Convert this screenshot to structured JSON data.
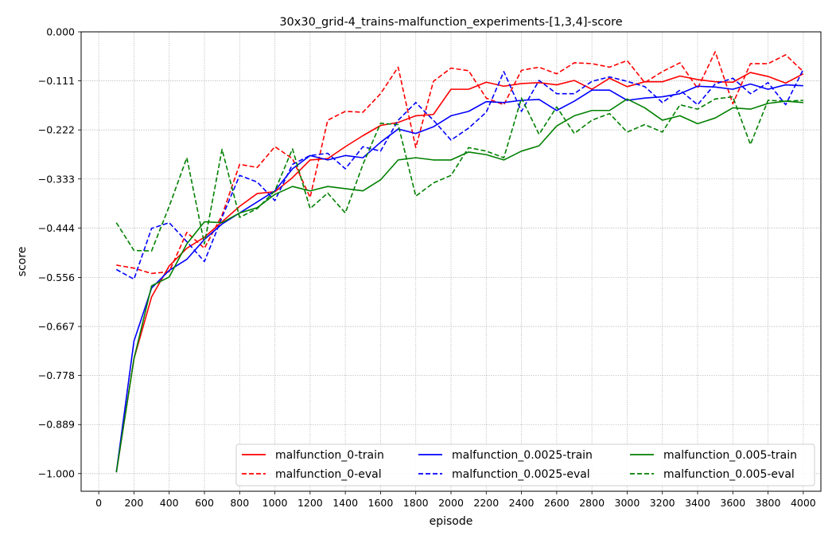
{
  "chart_data": {
    "type": "line",
    "title": "30x30_grid-4_trains-malfunction_experiments-[1,3,4]-score",
    "xlabel": "episode",
    "ylabel": "score",
    "xlim": [
      -100,
      4100
    ],
    "ylim": [
      -1.04,
      0.0
    ],
    "grid": true,
    "legend_position": "lower-right",
    "legend_columns": 3,
    "x_ticks": [
      0,
      200,
      400,
      600,
      800,
      1000,
      1200,
      1400,
      1600,
      1800,
      2000,
      2200,
      2400,
      2600,
      2800,
      3000,
      3200,
      3400,
      3600,
      3800,
      4000
    ],
    "x_tick_labels": [
      "0",
      "200",
      "400",
      "600",
      "800",
      "1000",
      "1200",
      "1400",
      "1600",
      "1800",
      "2000",
      "2200",
      "2400",
      "2600",
      "2800",
      "3000",
      "3200",
      "3400",
      "3600",
      "3800",
      "4000"
    ],
    "y_ticks": [
      0.0,
      -0.111,
      -0.222,
      -0.333,
      -0.444,
      -0.556,
      -0.667,
      -0.778,
      -0.889,
      -1.0
    ],
    "y_tick_labels": [
      "0.000",
      "−0.111",
      "−0.222",
      "−0.333",
      "−0.444",
      "−0.556",
      "−0.667",
      "−0.778",
      "−0.889",
      "−1.000"
    ],
    "x": [
      100,
      200,
      300,
      400,
      500,
      600,
      700,
      800,
      900,
      1000,
      1100,
      1200,
      1300,
      1400,
      1500,
      1600,
      1700,
      1800,
      1900,
      2000,
      2100,
      2200,
      2300,
      2400,
      2500,
      2600,
      2700,
      2800,
      2900,
      3000,
      3100,
      3200,
      3300,
      3400,
      3500,
      3600,
      3700,
      3800,
      3900,
      4000
    ],
    "series": [
      {
        "name": "malfunction_0-train",
        "color": "#ff0000",
        "dash": "solid",
        "values": [
          -0.997,
          -0.74,
          -0.6,
          -0.53,
          -0.49,
          -0.465,
          -0.43,
          -0.395,
          -0.366,
          -0.362,
          -0.33,
          -0.29,
          -0.287,
          -0.26,
          -0.235,
          -0.212,
          -0.205,
          -0.19,
          -0.187,
          -0.13,
          -0.13,
          -0.114,
          -0.123,
          -0.117,
          -0.115,
          -0.12,
          -0.11,
          -0.13,
          -0.105,
          -0.124,
          -0.113,
          -0.113,
          -0.1,
          -0.108,
          -0.113,
          -0.114,
          -0.092,
          -0.101,
          -0.116,
          -0.095
        ]
      },
      {
        "name": "malfunction_0-eval",
        "color": "#ff0000",
        "dash": "dashed",
        "values": [
          -0.528,
          -0.535,
          -0.547,
          -0.543,
          -0.454,
          -0.49,
          -0.415,
          -0.3,
          -0.307,
          -0.26,
          -0.287,
          -0.375,
          -0.2,
          -0.18,
          -0.182,
          -0.14,
          -0.08,
          -0.262,
          -0.112,
          -0.082,
          -0.088,
          -0.15,
          -0.165,
          -0.087,
          -0.08,
          -0.095,
          -0.07,
          -0.072,
          -0.08,
          -0.065,
          -0.115,
          -0.09,
          -0.07,
          -0.128,
          -0.045,
          -0.163,
          -0.072,
          -0.072,
          -0.052,
          -0.09
        ]
      },
      {
        "name": "malfunction_0.0025-train",
        "color": "#0000ff",
        "dash": "solid",
        "values": [
          -0.997,
          -0.7,
          -0.58,
          -0.54,
          -0.515,
          -0.47,
          -0.435,
          -0.41,
          -0.385,
          -0.36,
          -0.31,
          -0.28,
          -0.29,
          -0.28,
          -0.285,
          -0.25,
          -0.22,
          -0.23,
          -0.215,
          -0.19,
          -0.18,
          -0.158,
          -0.16,
          -0.155,
          -0.153,
          -0.178,
          -0.157,
          -0.132,
          -0.132,
          -0.155,
          -0.15,
          -0.147,
          -0.14,
          -0.123,
          -0.125,
          -0.13,
          -0.118,
          -0.13,
          -0.12,
          -0.122
        ]
      },
      {
        "name": "malfunction_0.0025-eval",
        "color": "#0000ff",
        "dash": "dashed",
        "values": [
          -0.538,
          -0.56,
          -0.445,
          -0.432,
          -0.475,
          -0.52,
          -0.42,
          -0.325,
          -0.34,
          -0.382,
          -0.3,
          -0.28,
          -0.275,
          -0.31,
          -0.26,
          -0.27,
          -0.2,
          -0.16,
          -0.2,
          -0.245,
          -0.218,
          -0.182,
          -0.09,
          -0.18,
          -0.11,
          -0.14,
          -0.14,
          -0.112,
          -0.102,
          -0.112,
          -0.124,
          -0.16,
          -0.132,
          -0.165,
          -0.118,
          -0.105,
          -0.14,
          -0.115,
          -0.165,
          -0.085
        ]
      },
      {
        "name": "malfunction_0.005-train",
        "color": "#008000",
        "dash": "solid",
        "values": [
          -0.997,
          -0.74,
          -0.575,
          -0.555,
          -0.48,
          -0.43,
          -0.432,
          -0.41,
          -0.398,
          -0.368,
          -0.35,
          -0.36,
          -0.35,
          -0.355,
          -0.36,
          -0.335,
          -0.29,
          -0.285,
          -0.29,
          -0.29,
          -0.272,
          -0.278,
          -0.29,
          -0.27,
          -0.258,
          -0.213,
          -0.19,
          -0.178,
          -0.178,
          -0.152,
          -0.172,
          -0.2,
          -0.19,
          -0.208,
          -0.195,
          -0.172,
          -0.175,
          -0.162,
          -0.157,
          -0.16
        ]
      },
      {
        "name": "malfunction_0.005-eval",
        "color": "#008000",
        "dash": "dashed",
        "values": [
          -0.432,
          -0.495,
          -0.496,
          -0.395,
          -0.285,
          -0.48,
          -0.266,
          -0.42,
          -0.4,
          -0.36,
          -0.265,
          -0.4,
          -0.365,
          -0.41,
          -0.3,
          -0.207,
          -0.21,
          -0.372,
          -0.342,
          -0.325,
          -0.262,
          -0.27,
          -0.285,
          -0.15,
          -0.232,
          -0.17,
          -0.23,
          -0.2,
          -0.185,
          -0.227,
          -0.21,
          -0.227,
          -0.165,
          -0.175,
          -0.152,
          -0.147,
          -0.255,
          -0.155,
          -0.157,
          -0.155
        ]
      }
    ]
  }
}
